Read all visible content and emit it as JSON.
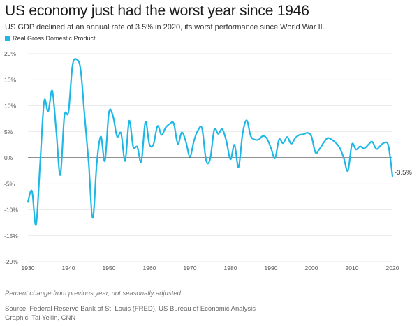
{
  "header": {
    "title": "US economy just had the worst year since 1946",
    "subtitle": "US GDP declined at an annual rate of 3.5% in 2020, its worst performance since World War II."
  },
  "footer": {
    "note": "Percent change from previous year, not seasonally adjusted.",
    "source": "Source: Federal Reserve Bank of St. Louis (FRED), US Bureau of Economic Analysis",
    "credit": "Graphic: Tal Yellin, CNN"
  },
  "colors": {
    "series": "#1fb8e6",
    "grid": "#e3e3e3",
    "zero": "#222222"
  },
  "chart_data": {
    "type": "line",
    "title": "US economy just had the worst year since 1946",
    "xlabel": "",
    "ylabel": "",
    "xlim": [
      1930,
      2020
    ],
    "ylim": [
      -20,
      20
    ],
    "xticks": [
      1930,
      1940,
      1950,
      1960,
      1970,
      1980,
      1990,
      2000,
      2010,
      2020
    ],
    "yticks": [
      20,
      15,
      10,
      5,
      0,
      -5,
      -10,
      -15,
      -20
    ],
    "ytick_labels": [
      "20%",
      "15%",
      "10%",
      "5%",
      "0%",
      "-5%",
      "-10%",
      "-15%",
      "-20%"
    ],
    "grid": true,
    "legend": "top-left",
    "series": [
      {
        "name": "Real Gross Domestic Product",
        "x": [
          1930,
          1931,
          1932,
          1933,
          1934,
          1935,
          1936,
          1937,
          1938,
          1939,
          1940,
          1941,
          1942,
          1943,
          1944,
          1945,
          1946,
          1947,
          1948,
          1949,
          1950,
          1951,
          1952,
          1953,
          1954,
          1955,
          1956,
          1957,
          1958,
          1959,
          1960,
          1961,
          1962,
          1963,
          1964,
          1965,
          1966,
          1967,
          1968,
          1969,
          1970,
          1971,
          1972,
          1973,
          1974,
          1975,
          1976,
          1977,
          1978,
          1979,
          1980,
          1981,
          1982,
          1983,
          1984,
          1985,
          1986,
          1987,
          1988,
          1989,
          1990,
          1991,
          1992,
          1993,
          1994,
          1995,
          1996,
          1997,
          1998,
          1999,
          2000,
          2001,
          2002,
          2003,
          2004,
          2005,
          2006,
          2007,
          2008,
          2009,
          2010,
          2011,
          2012,
          2013,
          2014,
          2015,
          2016,
          2017,
          2018,
          2019,
          2020
        ],
        "values": [
          -8.5,
          -6.4,
          -12.9,
          -1.2,
          10.8,
          8.9,
          12.9,
          5.1,
          -3.3,
          8.0,
          8.8,
          17.7,
          18.9,
          17.0,
          8.0,
          -1.0,
          -11.6,
          -1.1,
          4.1,
          -0.6,
          8.7,
          8.0,
          4.1,
          4.7,
          -0.6,
          7.1,
          2.1,
          2.1,
          -0.7,
          6.9,
          2.6,
          2.6,
          6.1,
          4.4,
          5.8,
          6.5,
          6.6,
          2.7,
          4.9,
          3.1,
          0.2,
          3.3,
          5.3,
          5.6,
          -0.5,
          -0.2,
          5.4,
          4.6,
          5.5,
          3.2,
          -0.3,
          2.5,
          -1.8,
          4.6,
          7.2,
          4.2,
          3.5,
          3.5,
          4.2,
          3.7,
          1.9,
          -0.1,
          3.5,
          2.8,
          4.0,
          2.7,
          3.8,
          4.4,
          4.5,
          4.8,
          4.1,
          1.0,
          1.7,
          2.9,
          3.8,
          3.5,
          2.9,
          1.9,
          -0.1,
          -2.5,
          2.6,
          1.6,
          2.2,
          1.8,
          2.5,
          3.1,
          1.7,
          2.3,
          2.9,
          2.3,
          -3.5
        ]
      }
    ],
    "annotations": [
      {
        "x": 2020,
        "label": "-3.5%"
      }
    ]
  }
}
